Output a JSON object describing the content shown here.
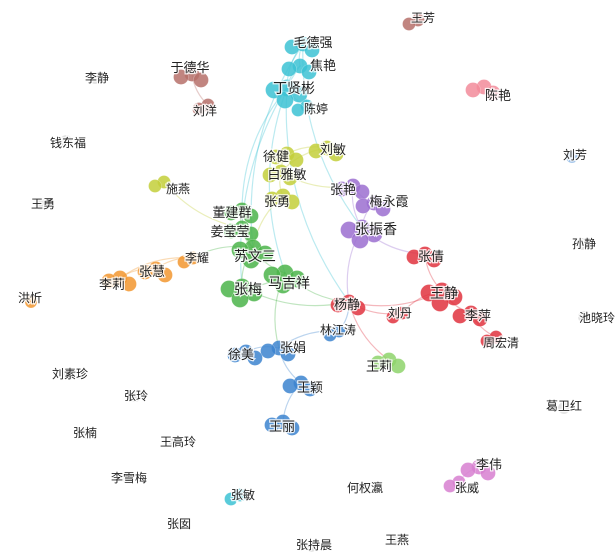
{
  "chart_data": {
    "type": "network",
    "title": "",
    "clusters": [
      {
        "id": "cyan",
        "color": "#3cc2d4"
      },
      {
        "id": "olive",
        "color": "#c3cf3a"
      },
      {
        "id": "green",
        "color": "#4bb44a"
      },
      {
        "id": "purple",
        "color": "#9b6fd0"
      },
      {
        "id": "red",
        "color": "#e0323e"
      },
      {
        "id": "orange",
        "color": "#f2972f"
      },
      {
        "id": "blue",
        "color": "#3c84cf"
      },
      {
        "id": "lightgreen",
        "color": "#8ed46b"
      },
      {
        "id": "brown",
        "color": "#b6706a"
      },
      {
        "id": "pink",
        "color": "#f28b9a"
      },
      {
        "id": "magenta",
        "color": "#d77fd0"
      },
      {
        "id": "grey",
        "color": "#aaaaaa"
      },
      {
        "id": "lightblue",
        "color": "#8db7e5"
      }
    ],
    "nodes": [
      {
        "name": "毛德强",
        "cluster": "cyan",
        "weight": 3
      },
      {
        "name": "焦艳",
        "cluster": "cyan",
        "weight": 3
      },
      {
        "name": "丁贤彬",
        "cluster": "cyan",
        "weight": 4
      },
      {
        "name": "陈婷",
        "cluster": "cyan",
        "weight": 2
      },
      {
        "name": "刘敏",
        "cluster": "olive",
        "weight": 3
      },
      {
        "name": "徐健",
        "cluster": "olive",
        "weight": 3
      },
      {
        "name": "白雅敏",
        "cluster": "olive",
        "weight": 3
      },
      {
        "name": "张勇",
        "cluster": "olive",
        "weight": 3
      },
      {
        "name": "施燕",
        "cluster": "olive",
        "weight": 2
      },
      {
        "name": "董建群",
        "cluster": "green",
        "weight": 3
      },
      {
        "name": "姜莹莹",
        "cluster": "green",
        "weight": 3
      },
      {
        "name": "苏文三",
        "cluster": "green",
        "weight": 4
      },
      {
        "name": "马吉祥",
        "cluster": "green",
        "weight": 4
      },
      {
        "name": "张梅",
        "cluster": "green",
        "weight": 4
      },
      {
        "name": "张艳",
        "cluster": "purple",
        "weight": 3
      },
      {
        "name": "梅永霞",
        "cluster": "purple",
        "weight": 3
      },
      {
        "name": "张振香",
        "cluster": "purple",
        "weight": 4
      },
      {
        "name": "张倩",
        "cluster": "red",
        "weight": 3
      },
      {
        "name": "王静",
        "cluster": "red",
        "weight": 4
      },
      {
        "name": "李萍",
        "cluster": "red",
        "weight": 3
      },
      {
        "name": "周宏清",
        "cluster": "red",
        "weight": 2
      },
      {
        "name": "杨静",
        "cluster": "red",
        "weight": 3
      },
      {
        "name": "刘丹",
        "cluster": "red",
        "weight": 2
      },
      {
        "name": "李耀",
        "cluster": "orange",
        "weight": 2
      },
      {
        "name": "张慧",
        "cluster": "orange",
        "weight": 3
      },
      {
        "name": "李莉",
        "cluster": "orange",
        "weight": 3
      },
      {
        "name": "林江涛",
        "cluster": "blue",
        "weight": 2
      },
      {
        "name": "张娟",
        "cluster": "blue",
        "weight": 3
      },
      {
        "name": "徐美",
        "cluster": "blue",
        "weight": 3
      },
      {
        "name": "王颖",
        "cluster": "blue",
        "weight": 3
      },
      {
        "name": "王丽",
        "cluster": "blue",
        "weight": 3
      },
      {
        "name": "王莉",
        "cluster": "lightgreen",
        "weight": 3
      },
      {
        "name": "于德华",
        "cluster": "brown",
        "weight": 3
      },
      {
        "name": "刘洋",
        "cluster": "brown",
        "weight": 2
      },
      {
        "name": "王芳",
        "cluster": "brown",
        "weight": 2
      },
      {
        "name": "陈艳",
        "cluster": "pink",
        "weight": 3
      },
      {
        "name": "李伟",
        "cluster": "magenta",
        "weight": 3
      },
      {
        "name": "张威",
        "cluster": "magenta",
        "weight": 2
      },
      {
        "name": "洪忻",
        "cluster": "orange",
        "weight": 1
      },
      {
        "name": "刘芳",
        "cluster": "lightblue",
        "weight": 1
      },
      {
        "name": "张玲",
        "cluster": "grey",
        "weight": 1
      },
      {
        "name": "张敏",
        "cluster": "cyan",
        "weight": 2
      },
      {
        "name": "李静",
        "cluster": "grey",
        "weight": 1
      },
      {
        "name": "钱东福",
        "cluster": "grey",
        "weight": 1
      },
      {
        "name": "王勇",
        "cluster": "grey",
        "weight": 1
      },
      {
        "name": "刘素珍",
        "cluster": "grey",
        "weight": 1
      },
      {
        "name": "张楠",
        "cluster": "grey",
        "weight": 1
      },
      {
        "name": "王高玲",
        "cluster": "grey",
        "weight": 1
      },
      {
        "name": "李雪梅",
        "cluster": "grey",
        "weight": 1
      },
      {
        "name": "张囡",
        "cluster": "grey",
        "weight": 1
      },
      {
        "name": "张持晨",
        "cluster": "grey",
        "weight": 1
      },
      {
        "name": "王燕",
        "cluster": "grey",
        "weight": 1
      },
      {
        "name": "何权瀛",
        "cluster": "grey",
        "weight": 1
      },
      {
        "name": "孙静",
        "cluster": "grey",
        "weight": 1
      },
      {
        "name": "池晓玲",
        "cluster": "grey",
        "weight": 1
      },
      {
        "name": "葛卫红",
        "cluster": "grey",
        "weight": 1
      }
    ],
    "edges": [
      [
        "毛德强",
        "焦艳"
      ],
      [
        "毛德强",
        "丁贤彬"
      ],
      [
        "焦艳",
        "丁贤彬"
      ],
      [
        "丁贤彬",
        "陈婷"
      ],
      [
        "毛德强",
        "苏文三"
      ],
      [
        "丁贤彬",
        "马吉祥"
      ],
      [
        "焦艳",
        "张梅"
      ],
      [
        "丁贤彬",
        "董建群"
      ],
      [
        "丁贤彬",
        "杨静"
      ],
      [
        "毛德强",
        "张振香"
      ],
      [
        "刘敏",
        "徐健"
      ],
      [
        "徐健",
        "白雅敏"
      ],
      [
        "白雅敏",
        "张勇"
      ],
      [
        "刘敏",
        "白雅敏"
      ],
      [
        "张勇",
        "苏文三"
      ],
      [
        "白雅敏",
        "张艳"
      ],
      [
        "施燕",
        "姜莹莹"
      ],
      [
        "董建群",
        "姜莹莹"
      ],
      [
        "姜莹莹",
        "苏文三"
      ],
      [
        "苏文三",
        "马吉祥"
      ],
      [
        "苏文三",
        "张梅"
      ],
      [
        "张梅",
        "马吉祥"
      ],
      [
        "董建群",
        "苏文三"
      ],
      [
        "马吉祥",
        "杨静"
      ],
      [
        "张梅",
        "杨静"
      ],
      [
        "马吉祥",
        "张娟"
      ],
      [
        "苏文三",
        "李耀"
      ],
      [
        "张艳",
        "梅永霞"
      ],
      [
        "梅永霞",
        "张振香"
      ],
      [
        "张艳",
        "张振香"
      ],
      [
        "张振香",
        "张倩"
      ],
      [
        "张振香",
        "杨静"
      ],
      [
        "张倩",
        "王静"
      ],
      [
        "王静",
        "李萍"
      ],
      [
        "李萍",
        "周宏清"
      ],
      [
        "王静",
        "刘丹"
      ],
      [
        "杨静",
        "刘丹"
      ],
      [
        "杨静",
        "王静"
      ],
      [
        "李耀",
        "张慧"
      ],
      [
        "张慧",
        "李莉"
      ],
      [
        "李耀",
        "李莉"
      ],
      [
        "张娟",
        "徐美"
      ],
      [
        "张娟",
        "王颖"
      ],
      [
        "王颖",
        "王丽"
      ],
      [
        "林江涛",
        "张娟"
      ],
      [
        "林江涛",
        "杨静"
      ],
      [
        "杨静",
        "王莉"
      ],
      [
        "于德华",
        "刘洋"
      ],
      [
        "李伟",
        "张威"
      ]
    ]
  }
}
